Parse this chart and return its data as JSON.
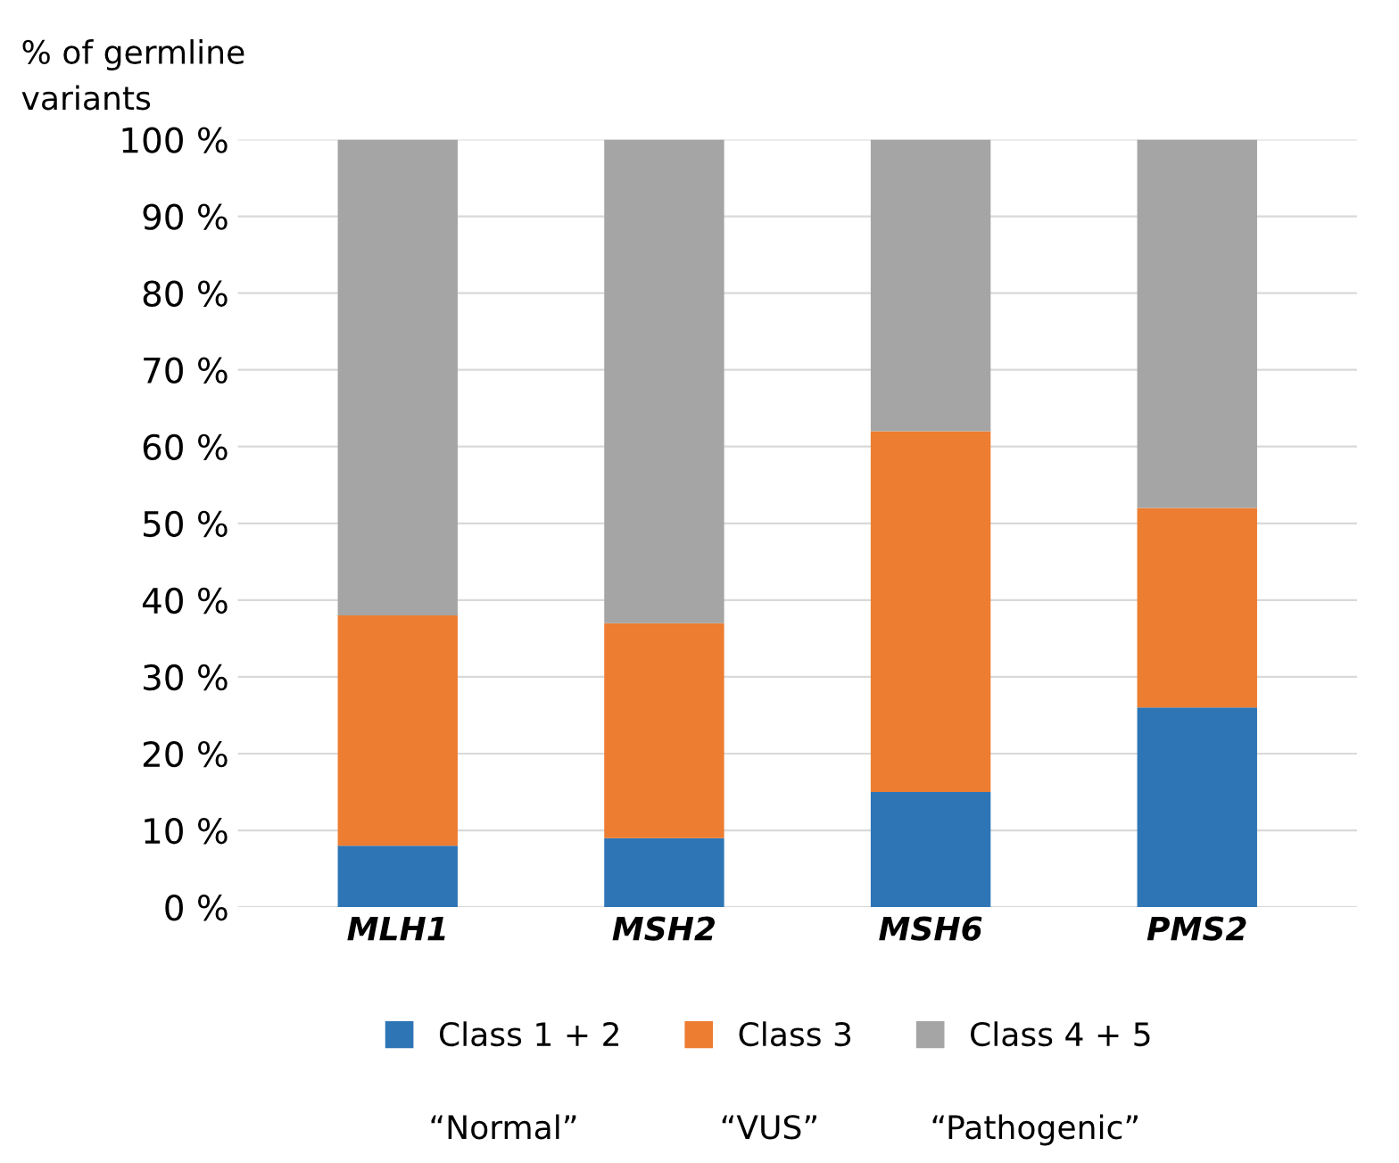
{
  "chart_data": {
    "type": "bar",
    "stacked": true,
    "ylabel": "% of germline variants",
    "categories": [
      "MLH1",
      "MSH2",
      "MSH6",
      "PMS2"
    ],
    "series": [
      {
        "name": "Class 1 + 2",
        "color": "#2e75b6",
        "values": [
          8,
          9,
          15,
          26
        ]
      },
      {
        "name": "Class 3",
        "color": "#ed7d31",
        "values": [
          30,
          28,
          47,
          26
        ]
      },
      {
        "name": "Class 4 + 5",
        "color": "#a5a5a5",
        "values": [
          62,
          63,
          38,
          48
        ]
      }
    ],
    "ylim": [
      0,
      100
    ],
    "yticks": [
      {
        "value": 0,
        "label": "0 %"
      },
      {
        "value": 10,
        "label": "10 %"
      },
      {
        "value": 20,
        "label": "20 %"
      },
      {
        "value": 30,
        "label": "30 %"
      },
      {
        "value": 40,
        "label": "40 %"
      },
      {
        "value": 50,
        "label": "50 %"
      },
      {
        "value": 60,
        "label": "60 %"
      },
      {
        "value": 70,
        "label": "70 %"
      },
      {
        "value": 80,
        "label": "80 %"
      },
      {
        "value": 90,
        "label": "90 %"
      },
      {
        "value": 100,
        "label": "100 %"
      }
    ],
    "grid": "y",
    "legend": "bottom",
    "annotations": [
      "“Normal”",
      "“VUS”",
      "“Pathogenic”"
    ]
  }
}
